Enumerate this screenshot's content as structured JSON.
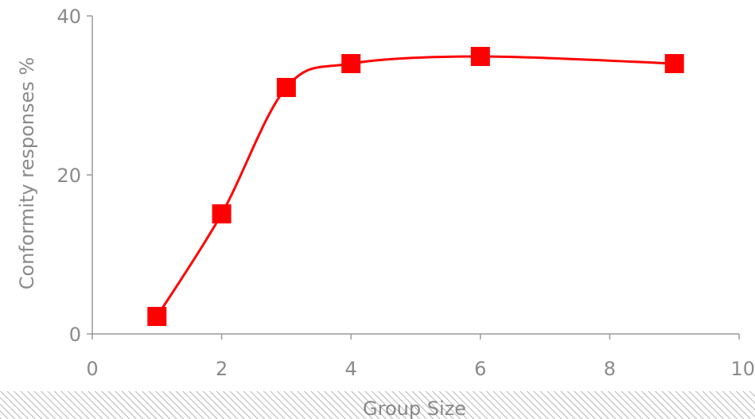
{
  "chart_data": {
    "type": "scatter",
    "title": "",
    "xlabel": "Group Size",
    "ylabel": "Conformity responses %",
    "xlim": [
      0,
      10
    ],
    "ylim": [
      0,
      40
    ],
    "x_ticks": [
      "0",
      "2",
      "4",
      "6",
      "8",
      "10"
    ],
    "y_ticks": [
      "0",
      "20",
      "40"
    ],
    "grid": false,
    "legend": "none",
    "series": [
      {
        "x": [
          1,
          2,
          3,
          4,
          6,
          9
        ],
        "y": [
          2.2,
          15.1,
          31.0,
          34.0,
          34.9,
          34.0
        ],
        "line": "smooth",
        "marker": "square",
        "color": "#ff0000"
      }
    ]
  }
}
